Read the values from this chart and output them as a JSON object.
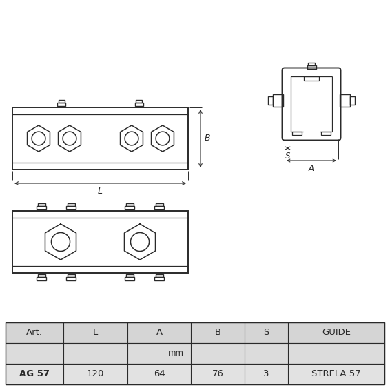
{
  "bg_color": "#ffffff",
  "line_color": "#2a2a2a",
  "table_cols": [
    "Art.",
    "L",
    "A",
    "B",
    "S",
    "GUIDE"
  ],
  "table_data": [
    [
      "AG 57",
      "120",
      "64",
      "76",
      "3",
      "STRELA 57"
    ]
  ],
  "fig_width": 5.66,
  "fig_height": 5.66,
  "dpi": 100
}
